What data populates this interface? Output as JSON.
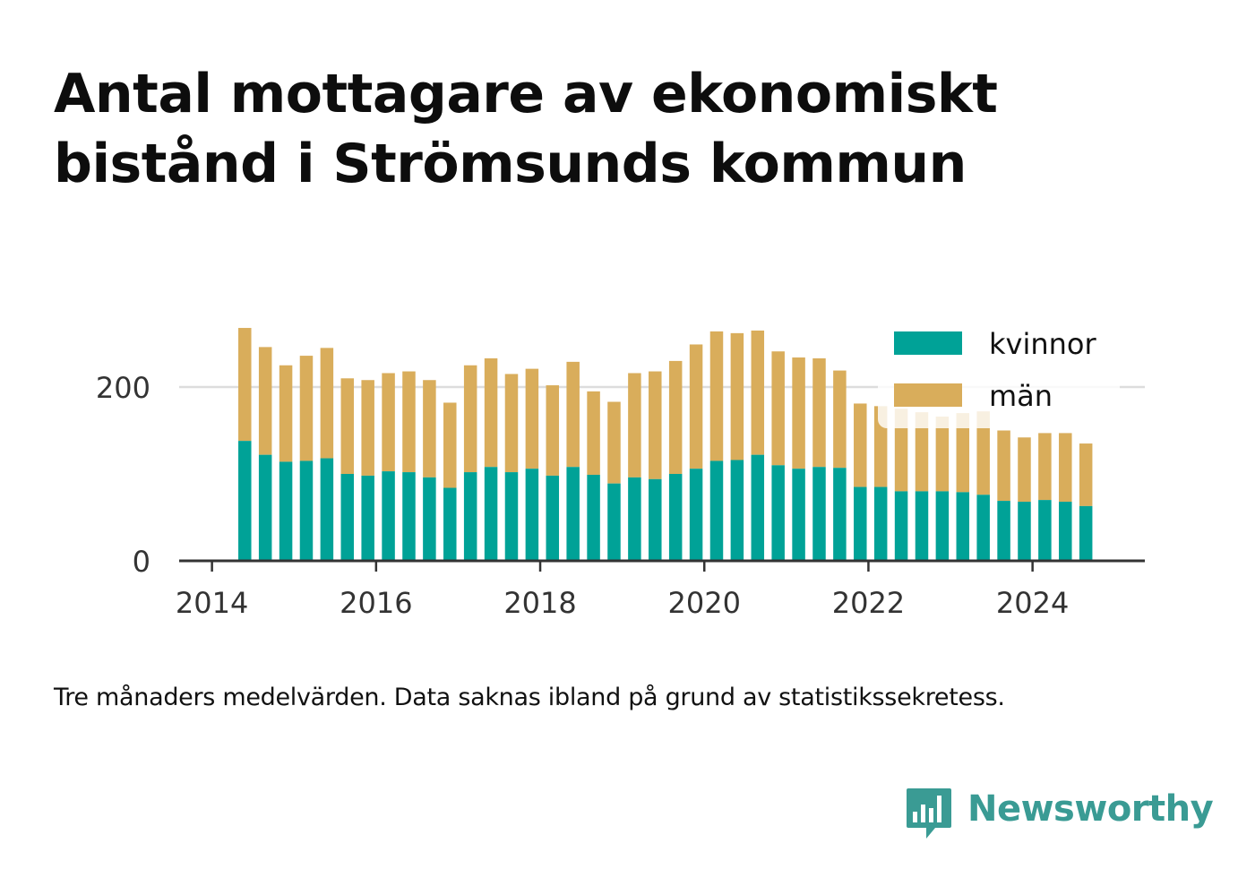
{
  "title": "Antal mottagare av ekonomiskt bistånd i Strömsunds kommun",
  "note": "Tre månaders medelvärden. Data saknas ibland på grund av statistikssekretess.",
  "brand": {
    "name": "Newsworthy",
    "icon": "bar-chart-speech-bubble-icon"
  },
  "colors": {
    "kvinnor": "#00a297",
    "man": "#d9ad5b",
    "axis": "#333333",
    "grid": "#dddddd",
    "brand": "#3a9b94"
  },
  "chart_data": {
    "type": "bar",
    "stacked": true,
    "x_start": 2014.4,
    "x_step": 0.25,
    "xlim": [
      2013.6,
      2025.2
    ],
    "ylim": [
      0,
      280
    ],
    "yticks": [
      0,
      200
    ],
    "xticks": [
      2014,
      2016,
      2018,
      2020,
      2022,
      2024
    ],
    "grid": "horizontal",
    "legend_position": "top-right",
    "series": [
      {
        "name": "kvinnor",
        "values": [
          138,
          122,
          114,
          115,
          118,
          100,
          98,
          103,
          102,
          96,
          84,
          102,
          108,
          102,
          106,
          98,
          108,
          99,
          89,
          96,
          94,
          100,
          106,
          115,
          116,
          122,
          110,
          106,
          108,
          107,
          85,
          85,
          80,
          80,
          80,
          79,
          76,
          69,
          68,
          70,
          68,
          63
        ]
      },
      {
        "name": "män",
        "values": [
          130,
          124,
          111,
          121,
          127,
          110,
          110,
          113,
          116,
          112,
          98,
          123,
          125,
          113,
          115,
          104,
          121,
          96,
          94,
          120,
          124,
          130,
          143,
          149,
          146,
          143,
          131,
          128,
          125,
          112,
          96,
          93,
          95,
          91,
          86,
          91,
          96,
          81,
          74,
          77,
          79,
          72
        ]
      }
    ]
  }
}
